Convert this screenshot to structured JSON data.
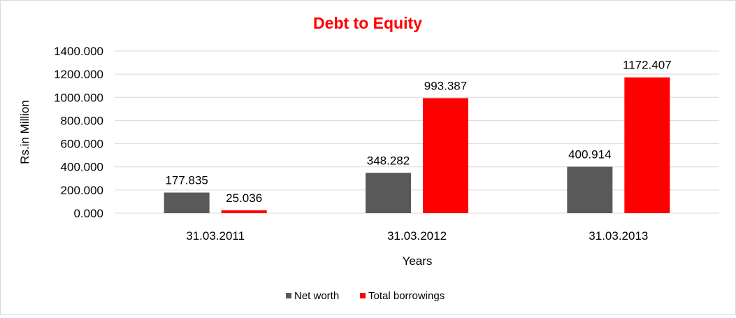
{
  "chart_data": {
    "type": "bar",
    "title": "Debt to Equity",
    "xlabel": "Years",
    "ylabel": "Rs.in Million",
    "categories": [
      "31.03.2011",
      "31.03.2012",
      "31.03.2013"
    ],
    "series": [
      {
        "name": "Net worth",
        "color": "#595959",
        "values": [
          177.835,
          348.282,
          400.914
        ],
        "labels": [
          "177.835",
          "348.282",
          "400.914"
        ]
      },
      {
        "name": "Total borrowings",
        "color": "#ff0000",
        "values": [
          25.036,
          993.387,
          1172.407
        ],
        "labels": [
          "25.036",
          "993.387",
          "1172.407"
        ]
      }
    ],
    "ylim": [
      0,
      1400
    ],
    "yticks": [
      0,
      200,
      400,
      600,
      800,
      1000,
      1200,
      1400
    ],
    "ytick_labels": [
      "0.000",
      "200.000",
      "400.000",
      "600.000",
      "800.000",
      "1000.000",
      "1200.000",
      "1400.000"
    ],
    "grid": true,
    "legend_position": "bottom",
    "title_color": "#ff0000"
  }
}
